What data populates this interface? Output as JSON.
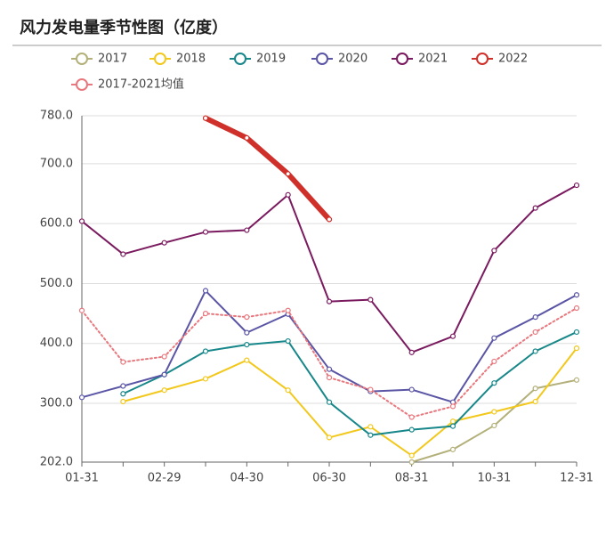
{
  "chart_data": {
    "type": "line",
    "title": "风力发电量季节性图（亿度）",
    "categories": [
      "01-31",
      null,
      "02-29",
      null,
      "04-30",
      null,
      "06-30",
      null,
      "08-31",
      null,
      "10-31",
      null,
      "12-31"
    ],
    "series": [
      {
        "name": "2017",
        "color": "#b3b07a",
        "values": [
          null,
          null,
          null,
          null,
          null,
          null,
          null,
          null,
          202,
          223,
          263,
          325,
          339
        ]
      },
      {
        "name": "2018",
        "color": "#f2c81c",
        "values": [
          null,
          303,
          322,
          341,
          372,
          322,
          243,
          261,
          213,
          270,
          286,
          303,
          392
        ]
      },
      {
        "name": "2019",
        "color": "#17878a",
        "values": [
          null,
          316,
          348,
          387,
          398,
          404,
          302,
          247,
          256,
          262,
          334,
          387,
          419
        ]
      },
      {
        "name": "2020",
        "color": "#5a55a5",
        "values": [
          310,
          329,
          348,
          488,
          418,
          449,
          357,
          320,
          323,
          302,
          409,
          444,
          481
        ]
      },
      {
        "name": "2021",
        "color": "#7a1a5f",
        "values": [
          604,
          549,
          568,
          586,
          589,
          648,
          470,
          473,
          385,
          412,
          555,
          626,
          664
        ]
      },
      {
        "name": "2022",
        "color": "#d0302a",
        "line_width": 6,
        "values": [
          null,
          null,
          null,
          776,
          743,
          683,
          607,
          null,
          null,
          null,
          null,
          null,
          null
        ]
      },
      {
        "name": "2017-2021均值",
        "color": "#e8787e",
        "line_style": "dotted",
        "values": [
          455,
          369,
          378,
          450,
          444,
          455,
          343,
          323,
          277,
          295,
          370,
          419,
          459
        ]
      }
    ],
    "ylim": [
      202,
      780
    ],
    "yticks": [
      {
        "value": 202,
        "label": "202.0"
      },
      {
        "value": 300,
        "label": "300.0"
      },
      {
        "value": 400,
        "label": "400.0"
      },
      {
        "value": 500,
        "label": "500.0"
      },
      {
        "value": 600,
        "label": "600.0"
      },
      {
        "value": 700,
        "label": "700.0"
      },
      {
        "value": 780,
        "label": "780.0"
      }
    ],
    "grid": true
  }
}
